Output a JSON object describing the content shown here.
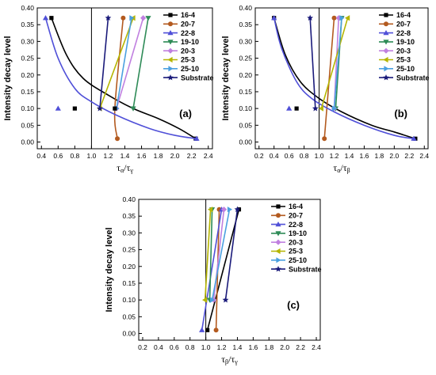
{
  "colors": {
    "16-4": "#000000",
    "20-7": "#b35a1f",
    "22-8": "#5050d8",
    "19-10": "#2e8b57",
    "20-3": "#c080e0",
    "25-3": "#b5b500",
    "25-10": "#4aa0e0",
    "Substrate": "#1a1a7a"
  },
  "chart_data": [
    {
      "type": "line",
      "panel_label": "(a)",
      "ylabel": "Intensity decay level",
      "xlabel": "τα/τγ",
      "xlim": [
        0.35,
        2.45
      ],
      "ylim": [
        -0.02,
        0.4
      ],
      "xticks": [
        "0.4",
        "0.6",
        "0.8",
        "1.0",
        "1.2",
        "1.4",
        "1.6",
        "1.8",
        "2.0",
        "2.2",
        "2.4"
      ],
      "yticks": [
        "0.00",
        "0.05",
        "0.10",
        "0.15",
        "0.20",
        "0.25",
        "0.30",
        "0.35",
        "0.40"
      ],
      "ref_x": 1.0,
      "legend": [
        "16-4",
        "20-7",
        "22-8",
        "19-10",
        "20-3",
        "25-3",
        "25-10",
        "Substrate"
      ],
      "series": [
        {
          "name": "16-4",
          "marker": "square",
          "points": [
            [
              0.52,
              0.37
            ],
            [
              0.7,
              0.26
            ],
            [
              0.9,
              0.19
            ],
            [
              1.2,
              0.14
            ],
            [
              1.5,
              0.1
            ],
            [
              1.8,
              0.07
            ],
            [
              2.05,
              0.04
            ],
            [
              2.25,
              0.01
            ]
          ]
        },
        {
          "name": "20-7",
          "marker": "circle",
          "points": [
            [
              1.31,
              0.01
            ],
            [
              1.28,
              0.1
            ],
            [
              1.38,
              0.37
            ]
          ]
        },
        {
          "name": "22-8",
          "marker": "triangle",
          "points": [
            [
              0.45,
              0.37
            ],
            [
              0.6,
              0.25
            ],
            [
              0.8,
              0.16
            ],
            [
              1.0,
              0.12
            ],
            [
              1.3,
              0.08
            ],
            [
              1.7,
              0.04
            ],
            [
              2.0,
              0.02
            ],
            [
              2.26,
              0.01
            ]
          ]
        },
        {
          "name": "19-10",
          "marker": "tri-down",
          "points": [
            [
              1.5,
              0.1
            ],
            [
              1.68,
              0.37
            ]
          ]
        },
        {
          "name": "20-3",
          "marker": "diamond",
          "points": [
            [
              1.3,
              0.1
            ],
            [
              1.62,
              0.37
            ]
          ]
        },
        {
          "name": "25-3",
          "marker": "tri-left",
          "points": [
            [
              1.1,
              0.1
            ],
            [
              1.5,
              0.37
            ]
          ]
        },
        {
          "name": "25-10",
          "marker": "tri-right",
          "points": [
            [
              1.3,
              0.1
            ],
            [
              1.48,
              0.37
            ]
          ]
        },
        {
          "name": "Substrate",
          "marker": "star",
          "points": [
            [
              1.1,
              0.1
            ],
            [
              1.2,
              0.37
            ]
          ]
        }
      ],
      "isolated_markers": [
        {
          "series": "22-8",
          "marker": "triangle",
          "point": [
            0.6,
            0.1
          ]
        },
        {
          "series": "16-4",
          "marker": "square",
          "point": [
            0.8,
            0.1
          ]
        },
        {
          "series": "16-4",
          "marker": "square",
          "point": [
            1.28,
            0.1
          ]
        }
      ]
    },
    {
      "type": "line",
      "panel_label": "(b)",
      "ylabel": "Intensity decay level",
      "xlabel": "τα/τβ",
      "xlim": [
        0.15,
        2.45
      ],
      "ylim": [
        -0.02,
        0.4
      ],
      "xticks": [
        "0.2",
        "0.4",
        "0.6",
        "0.8",
        "1.0",
        "1.2",
        "1.4",
        "1.6",
        "1.8",
        "2.0",
        "2.2",
        "2.4"
      ],
      "yticks": [
        "0.00",
        "0.05",
        "0.10",
        "0.15",
        "0.20",
        "0.25",
        "0.30",
        "0.35",
        "0.40"
      ],
      "ref_x": 1.0,
      "legend": [
        "16-4",
        "20-7",
        "22-8",
        "19-10",
        "20-3",
        "25-3",
        "25-10",
        "Substrate"
      ],
      "series": [
        {
          "name": "16-4",
          "marker": "square",
          "points": [
            [
              0.4,
              0.37
            ],
            [
              0.55,
              0.26
            ],
            [
              0.75,
              0.18
            ],
            [
              1.0,
              0.13
            ],
            [
              1.3,
              0.09
            ],
            [
              1.7,
              0.05
            ],
            [
              2.0,
              0.03
            ],
            [
              2.28,
              0.01
            ]
          ]
        },
        {
          "name": "20-7",
          "marker": "circle",
          "points": [
            [
              1.07,
              0.01
            ],
            [
              1.2,
              0.37
            ]
          ]
        },
        {
          "name": "22-8",
          "marker": "triangle",
          "points": [
            [
              0.4,
              0.37
            ],
            [
              0.5,
              0.28
            ],
            [
              0.7,
              0.18
            ],
            [
              0.9,
              0.13
            ],
            [
              1.2,
              0.09
            ],
            [
              1.6,
              0.05
            ],
            [
              2.0,
              0.02
            ],
            [
              2.26,
              0.01
            ]
          ]
        },
        {
          "name": "19-10",
          "marker": "tri-down",
          "points": [
            [
              1.22,
              0.1
            ],
            [
              1.3,
              0.37
            ]
          ]
        },
        {
          "name": "20-3",
          "marker": "diamond",
          "points": [
            [
              1.2,
              0.1
            ],
            [
              1.26,
              0.37
            ]
          ]
        },
        {
          "name": "25-3",
          "marker": "tri-left",
          "points": [
            [
              1.03,
              0.1
            ],
            [
              1.38,
              0.37
            ]
          ]
        },
        {
          "name": "25-10",
          "marker": "tri-right",
          "points": [
            [
              1.2,
              0.1
            ],
            [
              1.3,
              0.37
            ]
          ]
        },
        {
          "name": "Substrate",
          "marker": "star",
          "points": [
            [
              0.95,
              0.1
            ],
            [
              0.88,
              0.37
            ]
          ]
        }
      ],
      "isolated_markers": [
        {
          "series": "22-8",
          "marker": "triangle",
          "point": [
            0.6,
            0.1
          ]
        },
        {
          "series": "16-4",
          "marker": "square",
          "point": [
            0.7,
            0.1
          ]
        }
      ]
    },
    {
      "type": "line",
      "panel_label": "(c)",
      "ylabel": "Intensity decay level",
      "xlabel": "τβ/τγ",
      "xlim": [
        0.15,
        2.45
      ],
      "ylim": [
        -0.02,
        0.4
      ],
      "xticks": [
        "0.2",
        "0.4",
        "0.6",
        "0.8",
        "1.0",
        "1.2",
        "1.4",
        "1.6",
        "1.8",
        "2.0",
        "2.2",
        "2.4"
      ],
      "yticks": [
        "0.00",
        "0.05",
        "0.10",
        "0.15",
        "0.20",
        "0.25",
        "0.30",
        "0.35",
        "0.40"
      ],
      "ref_x": 1.0,
      "legend": [
        "16-4",
        "20-7",
        "22-8",
        "19-10",
        "20-3",
        "25-3",
        "25-10",
        "Substrate"
      ],
      "series": [
        {
          "name": "16-4",
          "marker": "square",
          "points": [
            [
              1.02,
              0.01
            ],
            [
              1.42,
              0.37
            ]
          ]
        },
        {
          "name": "20-7",
          "marker": "circle",
          "points": [
            [
              1.13,
              0.01
            ],
            [
              1.17,
              0.37
            ]
          ]
        },
        {
          "name": "22-8",
          "marker": "triangle",
          "points": [
            [
              0.95,
              0.01
            ],
            [
              1.2,
              0.37
            ]
          ]
        },
        {
          "name": "19-10",
          "marker": "tri-down",
          "points": [
            [
              1.05,
              0.1
            ],
            [
              1.08,
              0.37
            ]
          ]
        },
        {
          "name": "20-3",
          "marker": "diamond",
          "points": [
            [
              1.1,
              0.1
            ],
            [
              1.23,
              0.37
            ]
          ]
        },
        {
          "name": "25-3",
          "marker": "tri-left",
          "points": [
            [
              0.99,
              0.1
            ],
            [
              1.06,
              0.37
            ]
          ]
        },
        {
          "name": "25-10",
          "marker": "tri-right",
          "points": [
            [
              1.08,
              0.1
            ],
            [
              1.3,
              0.37
            ]
          ]
        },
        {
          "name": "Substrate",
          "marker": "star",
          "points": [
            [
              1.25,
              0.1
            ],
            [
              1.4,
              0.37
            ]
          ]
        }
      ],
      "isolated_markers": []
    }
  ]
}
